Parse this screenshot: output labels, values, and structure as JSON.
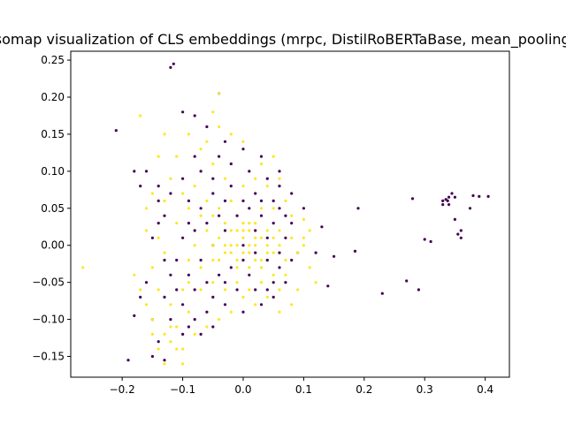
{
  "chart_data": {
    "type": "scatter",
    "title": "Isomap visualization of CLS embeddings (mrpc, DistilRoBERTaBase, mean_pooling)",
    "xlabel": "",
    "ylabel": "",
    "xlim": [
      -0.285,
      0.44
    ],
    "ylim": [
      -0.178,
      0.262
    ],
    "xticks": [
      -0.2,
      -0.1,
      0.0,
      0.1,
      0.2,
      0.3,
      0.4
    ],
    "yticks": [
      -0.15,
      -0.1,
      -0.05,
      0.0,
      0.05,
      0.1,
      0.15,
      0.2,
      0.25
    ],
    "xtick_labels": [
      "−0.2",
      "−0.1",
      "0.0",
      "0.1",
      "0.2",
      "0.3",
      "0.4"
    ],
    "ytick_labels": [
      "−0.15",
      "−0.10",
      "−0.05",
      "0.00",
      "0.05",
      "0.10",
      "0.15",
      "0.20",
      "0.25"
    ],
    "grid": false,
    "legend": "none",
    "colors": {
      "class_0": "#440154",
      "class_1": "#fde725"
    },
    "series": [
      {
        "color": "#440154",
        "points": [
          [
            -0.12,
            0.24
          ],
          [
            -0.115,
            0.245
          ],
          [
            -0.21,
            0.155
          ],
          [
            -0.04,
            0.205
          ],
          [
            -0.18,
            0.1
          ],
          [
            -0.16,
            0.1
          ],
          [
            -0.17,
            0.08
          ],
          [
            -0.14,
            0.08
          ],
          [
            -0.14,
            0.06
          ],
          [
            -0.13,
            0.04
          ],
          [
            -0.14,
            0.03
          ],
          [
            -0.15,
            0.01
          ],
          [
            -0.13,
            -0.02
          ],
          [
            -0.16,
            -0.05
          ],
          [
            -0.17,
            -0.07
          ],
          [
            -0.18,
            -0.095
          ],
          [
            -0.15,
            -0.1
          ],
          [
            -0.14,
            -0.13
          ],
          [
            -0.15,
            -0.15
          ],
          [
            -0.19,
            -0.155
          ],
          [
            -0.13,
            -0.155
          ],
          [
            -0.12,
            -0.1
          ],
          [
            -0.1,
            -0.12
          ],
          [
            -0.1,
            0.18
          ],
          [
            -0.08,
            0.175
          ],
          [
            -0.06,
            0.16
          ],
          [
            -0.03,
            0.14
          ],
          [
            0.0,
            0.13
          ],
          [
            0.03,
            0.12
          ],
          [
            0.06,
            0.1
          ],
          [
            0.04,
            0.09
          ],
          [
            -0.02,
            0.11
          ],
          [
            -0.07,
            0.1
          ],
          [
            -0.1,
            0.09
          ],
          [
            -0.12,
            0.07
          ],
          [
            -0.09,
            0.06
          ],
          [
            -0.05,
            0.07
          ],
          [
            -0.02,
            0.08
          ],
          [
            0.02,
            0.07
          ],
          [
            0.06,
            0.08
          ],
          [
            0.08,
            0.07
          ],
          [
            0.1,
            0.05
          ],
          [
            0.08,
            0.03
          ],
          [
            0.07,
            0.01
          ],
          [
            0.09,
            -0.01
          ],
          [
            0.06,
            -0.03
          ],
          [
            0.07,
            -0.05
          ],
          [
            0.05,
            -0.07
          ],
          [
            0.03,
            -0.08
          ],
          [
            0.0,
            -0.09
          ],
          [
            -0.03,
            -0.08
          ],
          [
            -0.06,
            -0.09
          ],
          [
            -0.08,
            -0.1
          ],
          [
            -0.1,
            -0.08
          ],
          [
            -0.11,
            -0.06
          ],
          [
            -0.09,
            -0.04
          ],
          [
            -0.07,
            -0.02
          ],
          [
            -0.05,
            0.0
          ],
          [
            -0.03,
            0.02
          ],
          [
            -0.01,
            0.04
          ],
          [
            0.01,
            0.05
          ],
          [
            0.03,
            0.04
          ],
          [
            0.05,
            0.03
          ],
          [
            0.04,
            0.01
          ],
          [
            0.02,
            -0.01
          ],
          [
            0.0,
            -0.02
          ],
          [
            -0.02,
            -0.03
          ],
          [
            -0.04,
            -0.04
          ],
          [
            -0.06,
            -0.05
          ],
          [
            -0.08,
            -0.06
          ],
          [
            -0.04,
            0.04
          ],
          [
            -0.06,
            0.03
          ],
          [
            -0.08,
            0.02
          ],
          [
            -0.1,
            0.01
          ],
          [
            0.0,
            0.0
          ],
          [
            0.02,
            0.02
          ],
          [
            0.04,
            -0.02
          ],
          [
            0.01,
            -0.04
          ],
          [
            -0.01,
            -0.06
          ],
          [
            -0.03,
            -0.05
          ],
          [
            -0.05,
            -0.07
          ],
          [
            0.05,
            -0.05
          ],
          [
            0.06,
            0.05
          ],
          [
            -0.07,
            0.05
          ],
          [
            -0.09,
            0.03
          ],
          [
            -0.11,
            -0.02
          ],
          [
            -0.12,
            -0.04
          ],
          [
            -0.13,
            -0.07
          ],
          [
            -0.09,
            -0.11
          ],
          [
            -0.07,
            -0.12
          ],
          [
            -0.05,
            -0.11
          ],
          [
            0.02,
            -0.06
          ],
          [
            0.04,
            -0.06
          ],
          [
            0.03,
            0.06
          ],
          [
            0.0,
            0.06
          ],
          [
            -0.03,
            0.06
          ],
          [
            -0.05,
            0.09
          ],
          [
            -0.08,
            0.12
          ],
          [
            -0.04,
            0.12
          ],
          [
            0.01,
            0.1
          ],
          [
            0.05,
            0.06
          ],
          [
            0.07,
            0.04
          ],
          [
            0.08,
            -0.02
          ],
          [
            0.06,
            -0.01
          ],
          [
            0.12,
            -0.01
          ],
          [
            0.15,
            -0.015
          ],
          [
            0.13,
            0.025
          ],
          [
            0.14,
            -0.055
          ],
          [
            0.19,
            0.05
          ],
          [
            0.185,
            -0.008
          ],
          [
            0.23,
            -0.065
          ],
          [
            0.27,
            -0.048
          ],
          [
            0.28,
            0.063
          ],
          [
            0.29,
            -0.06
          ],
          [
            0.3,
            0.008
          ],
          [
            0.31,
            0.005
          ],
          [
            0.33,
            0.06
          ],
          [
            0.335,
            0.062
          ],
          [
            0.34,
            0.065
          ],
          [
            0.345,
            0.07
          ],
          [
            0.34,
            0.055
          ],
          [
            0.33,
            0.055
          ],
          [
            0.35,
            0.035
          ],
          [
            0.355,
            0.015
          ],
          [
            0.36,
            0.02
          ],
          [
            0.36,
            0.01
          ],
          [
            0.375,
            0.05
          ],
          [
            0.38,
            0.067
          ],
          [
            0.39,
            0.066
          ],
          [
            0.405,
            0.066
          ],
          [
            0.35,
            0.065
          ],
          [
            0.338,
            0.06
          ]
        ]
      },
      {
        "color": "#fde725",
        "points": [
          [
            -0.265,
            -0.03
          ],
          [
            -0.17,
            0.175
          ],
          [
            -0.15,
            -0.1
          ],
          [
            -0.15,
            -0.12
          ],
          [
            -0.14,
            -0.14
          ],
          [
            -0.13,
            -0.12
          ],
          [
            -0.12,
            -0.13
          ],
          [
            -0.11,
            -0.14
          ],
          [
            -0.1,
            -0.14
          ],
          [
            -0.16,
            0.02
          ],
          [
            -0.14,
            0.01
          ],
          [
            -0.13,
            -0.01
          ],
          [
            -0.15,
            -0.03
          ],
          [
            -0.14,
            -0.06
          ],
          [
            -0.12,
            -0.08
          ],
          [
            -0.1,
            -0.06
          ],
          [
            -0.09,
            -0.02
          ],
          [
            -0.08,
            0.0
          ],
          [
            -0.06,
            0.02
          ],
          [
            -0.04,
            0.01
          ],
          [
            -0.02,
            0.0
          ],
          [
            0.0,
            0.01
          ],
          [
            0.02,
            0.0
          ],
          [
            0.04,
            0.0
          ],
          [
            0.06,
            0.0
          ],
          [
            0.08,
            0.01
          ],
          [
            0.1,
            0.035
          ],
          [
            0.1,
            0.01
          ],
          [
            0.09,
            -0.01
          ],
          [
            0.07,
            -0.02
          ],
          [
            0.05,
            -0.01
          ],
          [
            0.03,
            -0.02
          ],
          [
            0.01,
            -0.03
          ],
          [
            -0.01,
            -0.02
          ],
          [
            -0.03,
            -0.01
          ],
          [
            -0.05,
            -0.02
          ],
          [
            -0.07,
            -0.03
          ],
          [
            -0.09,
            -0.05
          ],
          [
            -0.07,
            -0.06
          ],
          [
            -0.05,
            -0.05
          ],
          [
            -0.03,
            -0.06
          ],
          [
            -0.01,
            -0.05
          ],
          [
            0.01,
            -0.06
          ],
          [
            0.03,
            -0.05
          ],
          [
            0.05,
            -0.04
          ],
          [
            0.07,
            -0.04
          ],
          [
            0.06,
            -0.06
          ],
          [
            0.04,
            -0.07
          ],
          [
            0.02,
            -0.08
          ],
          [
            0.0,
            -0.07
          ],
          [
            -0.02,
            -0.09
          ],
          [
            -0.04,
            -0.1
          ],
          [
            -0.06,
            -0.11
          ],
          [
            -0.08,
            -0.12
          ],
          [
            -0.09,
            -0.09
          ],
          [
            0.0,
            0.02
          ],
          [
            0.02,
            0.03
          ],
          [
            0.04,
            0.02
          ],
          [
            0.06,
            0.02
          ],
          [
            0.08,
            0.04
          ],
          [
            0.07,
            0.06
          ],
          [
            0.05,
            0.05
          ],
          [
            0.03,
            0.05
          ],
          [
            0.01,
            0.03
          ],
          [
            -0.01,
            0.02
          ],
          [
            -0.03,
            0.03
          ],
          [
            -0.05,
            0.04
          ],
          [
            -0.07,
            0.04
          ],
          [
            -0.09,
            0.05
          ],
          [
            -0.11,
            0.03
          ],
          [
            -0.1,
            0.07
          ],
          [
            -0.08,
            0.08
          ],
          [
            -0.06,
            0.06
          ],
          [
            -0.04,
            0.05
          ],
          [
            -0.02,
            0.06
          ],
          [
            0.0,
            0.08
          ],
          [
            0.02,
            0.09
          ],
          [
            0.04,
            0.08
          ],
          [
            0.06,
            0.09
          ],
          [
            -0.03,
            0.09
          ],
          [
            -0.05,
            0.11
          ],
          [
            -0.07,
            0.13
          ],
          [
            -0.09,
            0.15
          ],
          [
            -0.06,
            0.14
          ],
          [
            -0.04,
            0.16
          ],
          [
            -0.02,
            0.15
          ],
          [
            0.0,
            0.14
          ],
          [
            -0.05,
            0.18
          ],
          [
            -0.04,
            0.205
          ],
          [
            -0.11,
            0.12
          ],
          [
            -0.12,
            0.09
          ],
          [
            -0.13,
            0.06
          ],
          [
            -0.01,
            0.0
          ],
          [
            0.01,
            0.0
          ],
          [
            0.0,
            -0.01
          ],
          [
            0.02,
            -0.02
          ],
          [
            -0.02,
            -0.01
          ],
          [
            0.03,
            0.01
          ],
          [
            -0.03,
            0.0
          ],
          [
            0.04,
            -0.01
          ],
          [
            -0.04,
            -0.02
          ],
          [
            0.01,
            0.02
          ],
          [
            -0.01,
            -0.03
          ],
          [
            0.02,
            0.01
          ],
          [
            0.0,
            0.03
          ],
          [
            0.05,
            0.01
          ],
          [
            -0.05,
            0.0
          ],
          [
            0.03,
            -0.03
          ],
          [
            -0.02,
            0.02
          ],
          [
            0.01,
            -0.01
          ],
          [
            0.11,
            -0.03
          ],
          [
            0.12,
            -0.05
          ],
          [
            0.09,
            -0.06
          ],
          [
            0.08,
            -0.08
          ],
          [
            0.06,
            -0.09
          ],
          [
            -0.11,
            -0.11
          ],
          [
            -0.12,
            -0.11
          ],
          [
            -0.16,
            -0.08
          ],
          [
            -0.17,
            -0.06
          ],
          [
            -0.18,
            -0.04
          ],
          [
            -0.16,
            0.05
          ],
          [
            -0.15,
            0.07
          ],
          [
            -0.14,
            0.12
          ],
          [
            -0.13,
            0.15
          ],
          [
            0.03,
            0.11
          ],
          [
            0.05,
            0.12
          ],
          [
            -0.1,
            -0.16
          ],
          [
            -0.13,
            -0.16
          ],
          [
            0.1,
            0.0
          ],
          [
            0.11,
            0.02
          ]
        ]
      }
    ]
  }
}
